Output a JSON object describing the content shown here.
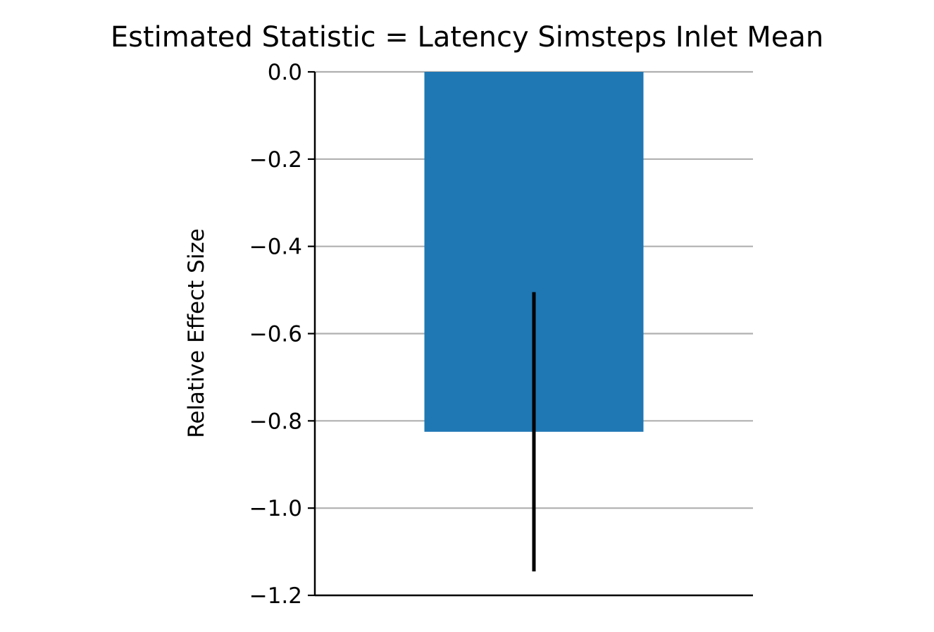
{
  "chart_data": {
    "type": "bar",
    "title": "Estimated Statistic = Latency Simsteps Inlet Mean",
    "xlabel": "",
    "ylabel": "Relative Effect Size",
    "categories": [
      ""
    ],
    "values": [
      -0.825
    ],
    "error_bars": [
      {
        "low": -1.145,
        "high": -0.505
      }
    ],
    "ylim": [
      -1.2,
      0.0
    ],
    "yticks": [
      0.0,
      -0.2,
      -0.4,
      -0.6,
      -0.8,
      -1.0,
      -1.2
    ],
    "ytick_labels": [
      "0.0",
      "−0.2",
      "−0.4",
      "−0.6",
      "−0.8",
      "−1.0",
      "−1.2"
    ],
    "grid": "horizontal",
    "colors": {
      "bar": "#1f77b4",
      "error_bar": "#000000",
      "grid": "#b0b0b0",
      "axis": "#000000"
    }
  }
}
